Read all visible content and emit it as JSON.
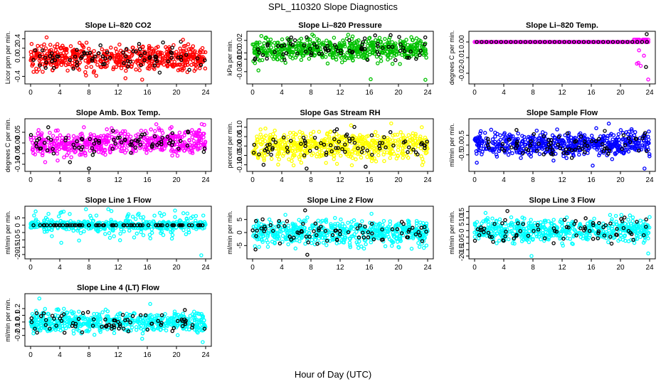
{
  "figure": {
    "title": "SPL_110320  Slope Diagnostics",
    "xlabel": "Hour of Day (UTC)"
  },
  "chart_data": [
    {
      "type": "scatter",
      "id": "co2",
      "title": "Slope Li–820 CO2",
      "ylabel": "Licor ppm per min.",
      "xlim": [
        0,
        24
      ],
      "ylim": [
        -0.5,
        0.5
      ],
      "xticks": [
        0,
        4,
        8,
        12,
        16,
        20,
        24
      ],
      "yticks": [
        -0.4,
        0,
        0.2,
        0.4
      ],
      "ytick_labels": [
        "-0.4",
        "0.0",
        "0.2",
        "0.4"
      ],
      "color": "#ff0000",
      "pattern": "noise",
      "center": 0.0,
      "spread": 0.13,
      "extremes": [
        [
          2.2,
          0.43
        ],
        [
          20.6,
          0.34
        ],
        [
          20.9,
          0.38
        ],
        [
          7.6,
          -0.38
        ],
        [
          13.0,
          -0.44
        ],
        [
          15.3,
          -0.47
        ],
        [
          17.7,
          -0.32
        ]
      ]
    },
    {
      "type": "scatter",
      "id": "pressure",
      "title": "Slope Li–820 Pressure",
      "ylabel": "kPa per min.",
      "xlim": [
        0,
        24
      ],
      "ylim": [
        -0.045,
        0.03
      ],
      "xticks": [
        0,
        4,
        8,
        12,
        16,
        20,
        24
      ],
      "yticks": [
        -0.03,
        -0.01,
        0,
        0.02
      ],
      "ytick_labels": [
        "-0.03",
        "-0.01",
        "0.00",
        "0.02"
      ],
      "color": "#00c000",
      "pattern": "noise",
      "center": 0.006,
      "spread": 0.009,
      "extremes": [
        [
          1.2,
          0.027
        ],
        [
          8.4,
          0.027
        ],
        [
          13.1,
          0.029
        ],
        [
          16.8,
          0.028
        ],
        [
          0.8,
          -0.028
        ],
        [
          16.2,
          -0.042
        ],
        [
          23.7,
          -0.043
        ]
      ]
    },
    {
      "type": "scatter",
      "id": "temp",
      "title": "Slope Li–820 Temp.",
      "ylabel": "degrees C per min.",
      "xlim": [
        0,
        24
      ],
      "ylim": [
        -0.025,
        0.005
      ],
      "xticks": [
        0,
        4,
        8,
        12,
        16,
        20,
        24
      ],
      "yticks": [
        -0.02,
        -0.01,
        0
      ],
      "ytick_labels": [
        "-0.02",
        "-0.01",
        "0.00"
      ],
      "color": "#ff00ff",
      "pattern": "flat",
      "center": 0.0,
      "spread": 0.0,
      "extremes": [
        [
          23.6,
          0.005
        ],
        [
          23.8,
          -0.024
        ],
        [
          23.5,
          -0.016
        ]
      ]
    },
    {
      "type": "scatter",
      "id": "boxtemp",
      "title": "Slope Amb. Box Temp.",
      "ylabel": "degrees C per min.",
      "xlim": [
        0,
        24
      ],
      "ylim": [
        -0.12,
        0.1
      ],
      "xticks": [
        0,
        4,
        8,
        12,
        16,
        20,
        24
      ],
      "yticks": [
        -0.1,
        -0.05,
        0,
        0.05
      ],
      "ytick_labels": [
        "-0.10",
        "-0.05",
        "0.00",
        "0.05"
      ],
      "color": "#ff00ff",
      "pattern": "trend",
      "center": 0.0,
      "spread": 0.028,
      "extremes": [
        [
          8.0,
          -0.12
        ],
        [
          5.4,
          -0.09
        ],
        [
          2.0,
          -0.09
        ],
        [
          23.8,
          0.085
        ]
      ]
    },
    {
      "type": "scatter",
      "id": "rh",
      "title": "Slope Gas Stream RH",
      "ylabel": "percent per min.",
      "xlim": [
        0,
        24
      ],
      "ylim": [
        -0.12,
        0.13
      ],
      "xticks": [
        0,
        4,
        8,
        12,
        16,
        20,
        24
      ],
      "yticks": [
        -0.1,
        -0.05,
        0,
        0.05,
        0.1
      ],
      "ytick_labels": [
        "-0.10",
        "-0.05",
        "0.00",
        "0.05",
        "0.10"
      ],
      "color": "#ffff00",
      "pattern": "noise",
      "center": 0.0,
      "spread": 0.038,
      "extremes": [
        [
          13.5,
          0.11
        ],
        [
          23.2,
          0.1
        ],
        [
          19.0,
          0.12
        ],
        [
          7.4,
          -0.12
        ],
        [
          15.5,
          -0.11
        ],
        [
          1.5,
          -0.1
        ]
      ]
    },
    {
      "type": "scatter",
      "id": "sample",
      "title": "Slope Sample Flow",
      "ylabel": "ml/min per min.",
      "xlim": [
        0,
        24
      ],
      "ylim": [
        -1.2,
        1.2
      ],
      "xticks": [
        0,
        4,
        8,
        12,
        16,
        20,
        24
      ],
      "yticks": [
        -0.5,
        0,
        0.5
      ],
      "ytick_labels": [
        "-0.5",
        "0.0",
        "0.5"
      ],
      "color": "#0000ff",
      "pattern": "noise",
      "center": 0.05,
      "spread": 0.3,
      "extremes": [
        [
          18.4,
          1.1
        ],
        [
          16.2,
          -1.05
        ],
        [
          23.3,
          -1.2
        ],
        [
          0.3,
          -0.9
        ]
      ]
    },
    {
      "type": "scatter",
      "id": "line1",
      "title": "Slope Line 1 Flow",
      "ylabel": "ml/min per min.",
      "xlim": [
        0,
        24
      ],
      "ylim": [
        -21,
        11
      ],
      "xticks": [
        0,
        4,
        8,
        12,
        16,
        20,
        24
      ],
      "yticks": [
        -20,
        -15,
        -10,
        -5,
        0,
        5
      ],
      "ytick_labels": [
        "-20",
        "-15",
        "-10",
        "-5",
        "0",
        "5"
      ],
      "color": "#00ffff",
      "pattern": "band",
      "center": 0.0,
      "spread": 2.3,
      "extremes": [
        [
          23.4,
          -20.5
        ],
        [
          4.2,
          -12
        ],
        [
          21.5,
          8
        ],
        [
          19.8,
          10
        ]
      ]
    },
    {
      "type": "scatter",
      "id": "line2",
      "title": "Slope Line 2 Flow",
      "ylabel": "ml/min per min.",
      "xlim": [
        0,
        24
      ],
      "ylim": [
        -9,
        9
      ],
      "xticks": [
        0,
        4,
        8,
        12,
        16,
        20,
        24
      ],
      "yticks": [
        -5,
        0,
        5
      ],
      "ytick_labels": [
        "-5",
        "0",
        "5"
      ],
      "color": "#00ffff",
      "pattern": "noise",
      "center": 0.0,
      "spread": 2.3,
      "extremes": [
        [
          4.5,
          6.8
        ],
        [
          7.2,
          8.5
        ],
        [
          16.3,
          7.2
        ],
        [
          0.4,
          -6.5
        ],
        [
          7.5,
          -8.5
        ],
        [
          20.0,
          -5.5
        ]
      ]
    },
    {
      "type": "scatter",
      "id": "line3",
      "title": "Slope Line 3 Flow",
      "ylabel": "ml/min per min.",
      "xlim": [
        0,
        24
      ],
      "ylim": [
        -20,
        17
      ],
      "xticks": [
        0,
        4,
        8,
        12,
        16,
        20,
        24
      ],
      "yticks": [
        -20,
        -15,
        -10,
        -5,
        0,
        5,
        10,
        15
      ],
      "ytick_labels": [
        "-20",
        "-15",
        "-10",
        "-5",
        "0",
        "5",
        "10",
        "15"
      ],
      "color": "#00ffff",
      "pattern": "noise",
      "center": 0.0,
      "spread": 4.3,
      "extremes": [
        [
          4.5,
          15.5
        ],
        [
          1.5,
          14
        ],
        [
          21.3,
          12
        ],
        [
          7.8,
          -20
        ],
        [
          23.8,
          -18
        ],
        [
          12.0,
          -10
        ]
      ]
    },
    {
      "type": "scatter",
      "id": "line4",
      "title": "Slope Line 4 (LT) Flow",
      "ylabel": "ml/min per min.",
      "xlim": [
        0,
        24
      ],
      "ylim": [
        -0.32,
        0.38
      ],
      "xticks": [
        0,
        4,
        8,
        12,
        16,
        20,
        24
      ],
      "yticks": [
        -0.2,
        -0.1,
        0,
        0.1,
        0.2
      ],
      "ytick_labels": [
        "-0.2",
        "-0.1",
        "0.0",
        "0.1",
        "0.2"
      ],
      "color": "#00ffff",
      "pattern": "noise",
      "center": 0.0,
      "spread": 0.075,
      "extremes": [
        [
          1.2,
          0.35
        ],
        [
          16.4,
          0.27
        ],
        [
          15.3,
          -0.25
        ],
        [
          23.6,
          -0.3
        ]
      ]
    }
  ]
}
